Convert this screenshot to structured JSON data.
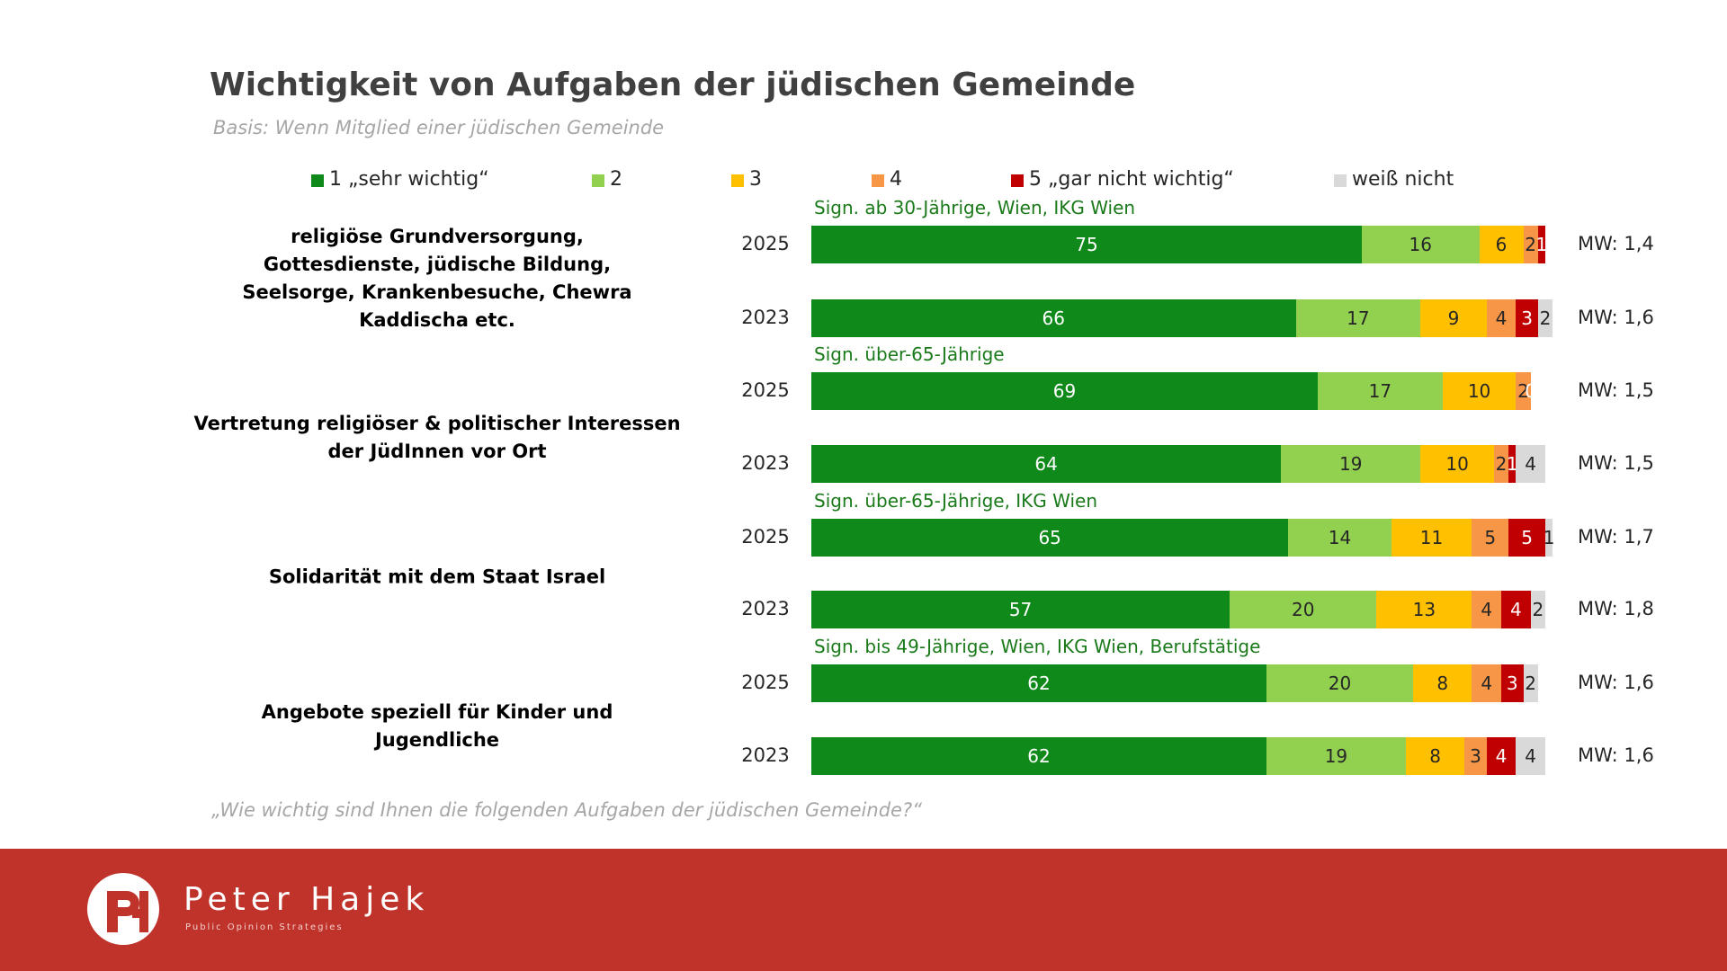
{
  "chart_data": {
    "type": "stacked-bar",
    "title": "Wichtigkeit von Aufgaben der jüdischen Gemeinde",
    "subtitle": "Basis: Wenn Mitglied einer jüdischen Gemeinde",
    "question": "„Wie wichtig sind Ihnen die folgenden Aufgaben der jüdischen Gemeinde?“",
    "xlim": [
      0,
      100
    ],
    "categories": [
      "2025",
      "2023",
      "2025",
      "2023",
      "2025",
      "2023",
      "2025",
      "2023"
    ],
    "groups": [
      "religiöse Grundversorgung, Gottesdienste, jüdische Bildung, Seelsorge, Krankenbesuche, Chewra Kaddischa etc.",
      "Vertretung religiöser & politischer Interessen der JüdInnen vor Ort",
      "Solidarität mit dem Staat Israel",
      "Angebote speziell für Kinder und Jugendliche"
    ],
    "notes": [
      "Sign. ab 30-Jährige, Wien, IKG Wien",
      null,
      "Sign. über-65-Jährige",
      null,
      "Sign. über-65-Jährige, IKG Wien",
      null,
      "Sign. bis 49-Jährige, Wien, IKG Wien, Berufstätige",
      null
    ],
    "mean_labels": [
      "MW: 1,4",
      "MW: 1,6",
      "MW: 1,5",
      "MW: 1,5",
      "MW: 1,7",
      "MW: 1,8",
      "MW: 1,6",
      "MW: 1,6"
    ],
    "series": [
      {
        "name": "1 „sehr wichtig“",
        "color": "#0f8a1a",
        "values": [
          75,
          66,
          69,
          64,
          65,
          57,
          62,
          62
        ]
      },
      {
        "name": "2",
        "color": "#92d050",
        "values": [
          16,
          17,
          17,
          19,
          14,
          20,
          20,
          19
        ]
      },
      {
        "name": "3",
        "color": "#ffc000",
        "values": [
          6,
          9,
          10,
          10,
          11,
          13,
          8,
          8
        ]
      },
      {
        "name": "4",
        "color": "#f79646",
        "values": [
          2,
          4,
          2,
          2,
          5,
          4,
          4,
          3
        ]
      },
      {
        "name": "5 „gar nicht wichtig“",
        "color": "#c00000",
        "values": [
          1,
          3,
          0,
          1,
          5,
          4,
          3,
          4
        ]
      },
      {
        "name": "weiß nicht",
        "color": "#d9d9d9",
        "values": [
          null,
          2,
          null,
          4,
          1,
          2,
          2,
          4
        ]
      }
    ]
  },
  "footer": {
    "brand": "Peter Hajek",
    "tagline": "Public Opinion Strategies"
  }
}
